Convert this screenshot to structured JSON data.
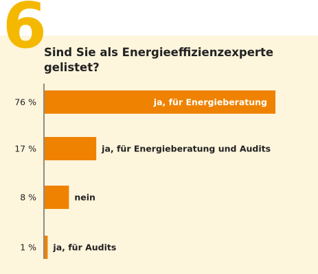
{
  "badge": "6",
  "colors": {
    "bar": "#ef8200",
    "badge": "#f5b800",
    "panel": "#fdf5dc",
    "text": "#222222",
    "inner_label": "#ffffff"
  },
  "chart_data": {
    "type": "bar",
    "orientation": "horizontal",
    "title": "Sind Sie als Energieeffizienzexperte gelistet?",
    "categories": [
      "ja, für Energieberatung",
      "ja, für Energieberatung und Audits",
      "nein",
      "ja, für Audits"
    ],
    "values": [
      76,
      17,
      8,
      1
    ],
    "value_labels": [
      "76 %",
      "17 %",
      "8 %",
      "1 %"
    ],
    "unit": "%",
    "grid": false,
    "legend": "none"
  }
}
